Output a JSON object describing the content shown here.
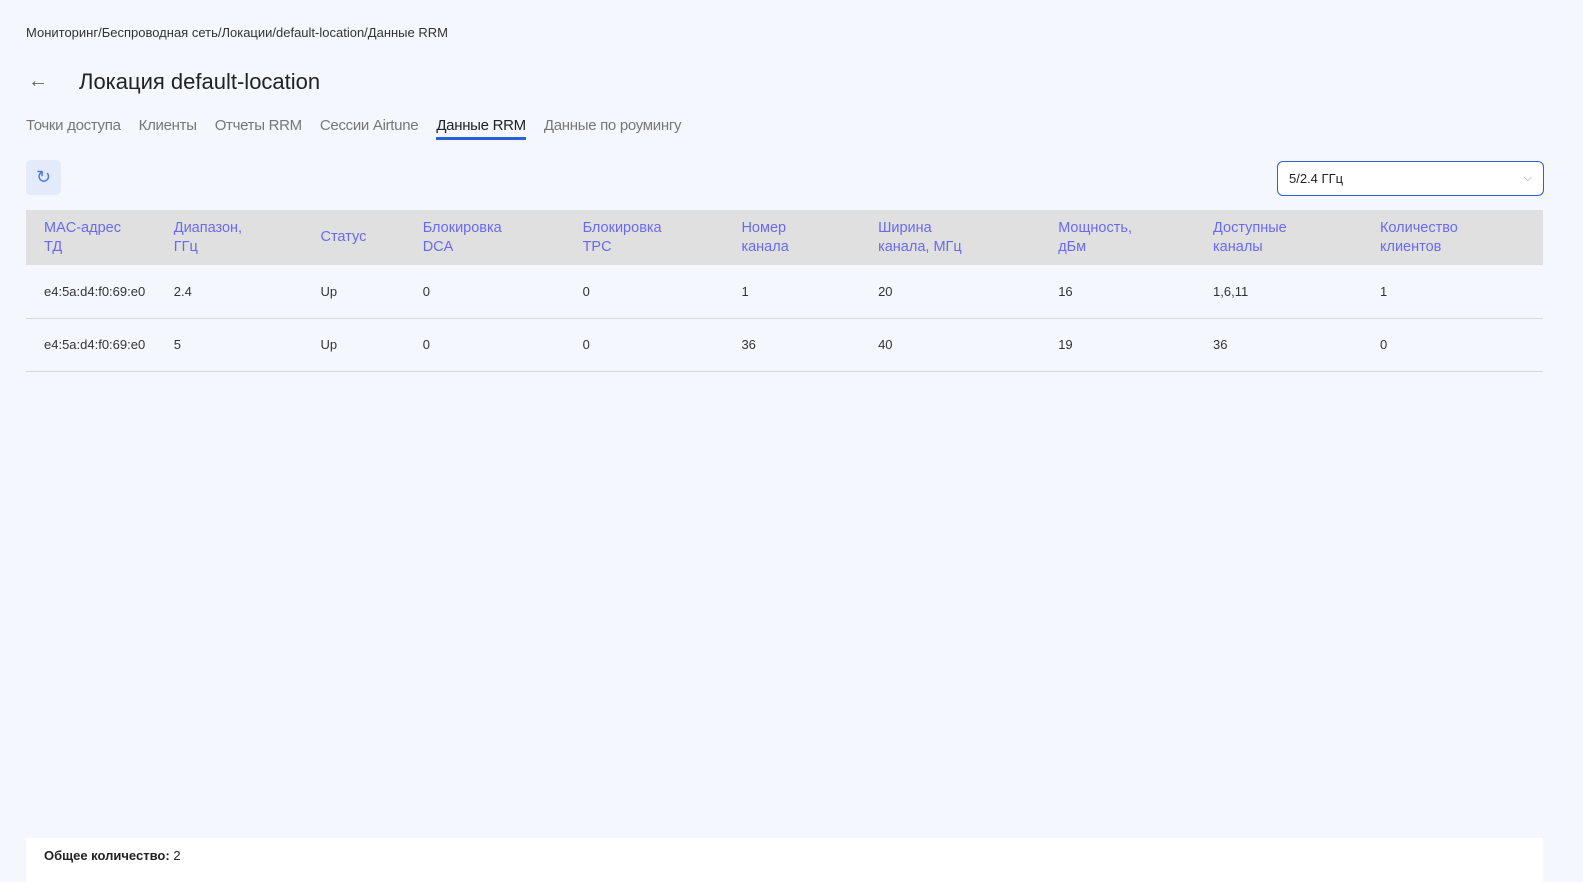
{
  "breadcrumb": "Мониторинг/Беспроводная сеть/Локации/default-location/Данные RRM",
  "title": "Локация default-location",
  "tabs": [
    {
      "label": "Точки доступа"
    },
    {
      "label": "Клиенты"
    },
    {
      "label": "Отчеты RRM"
    },
    {
      "label": "Сессии Airtune"
    },
    {
      "label": "Данные RRM",
      "active": true
    },
    {
      "label": "Данные по роумингу"
    }
  ],
  "band_select": {
    "value": "5/2.4 ГГц"
  },
  "table": {
    "headers": [
      [
        "MAC-адрес",
        "ТД"
      ],
      [
        "Диапазон,",
        "ГГц"
      ],
      [
        "Статус",
        ""
      ],
      [
        "Блокировка",
        "DCA"
      ],
      [
        "Блокировка",
        "TPC"
      ],
      [
        "Номер",
        "канала"
      ],
      [
        "Ширина",
        "канала, МГц"
      ],
      [
        "Мощность,",
        "дБм"
      ],
      [
        "Доступные",
        "каналы"
      ],
      [
        "Количество",
        "клиентов"
      ]
    ],
    "rows": [
      [
        "e4:5a:d4:f0:69:e0",
        "2.4",
        "Up",
        "0",
        "0",
        "1",
        "20",
        "16",
        "1,6,11",
        "1"
      ],
      [
        "e4:5a:d4:f0:69:e0",
        "5",
        "Up",
        "0",
        "0",
        "36",
        "40",
        "19",
        "36",
        "0"
      ]
    ]
  },
  "footer": {
    "label": "Общее количество:",
    "value": "2"
  }
}
